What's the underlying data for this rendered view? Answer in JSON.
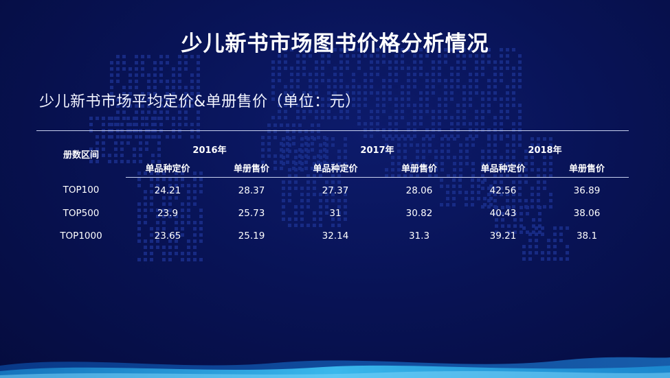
{
  "title": "少儿新书市场图书价格分析情况",
  "subtitle": "少儿新书市场平均定价&单册售价（单位：元）",
  "table": {
    "row_header": "册数区间",
    "years": [
      "2016年",
      "2017年",
      "2018年"
    ],
    "sub_headers": [
      "单品种定价",
      "单册售价",
      "单品种定价",
      "单册售价",
      "单品种定价",
      "单册售价"
    ],
    "rows": [
      {
        "range": "TOP100",
        "values": [
          "24.21",
          "28.37",
          "27.37",
          "28.06",
          "42.56",
          "36.89"
        ]
      },
      {
        "range": "TOP500",
        "values": [
          "23.9",
          "25.73",
          "31",
          "30.82",
          "40.43",
          "38.06"
        ]
      },
      {
        "range": "TOP1000",
        "values": [
          "23.65",
          "25.19",
          "32.14",
          "31.3",
          "39.21",
          "38.1"
        ]
      }
    ]
  },
  "colors": {
    "background": "#081356",
    "dot_map": "#1a2f8c",
    "rule": "#c9d2f0",
    "wave": "#1fa3e6"
  }
}
